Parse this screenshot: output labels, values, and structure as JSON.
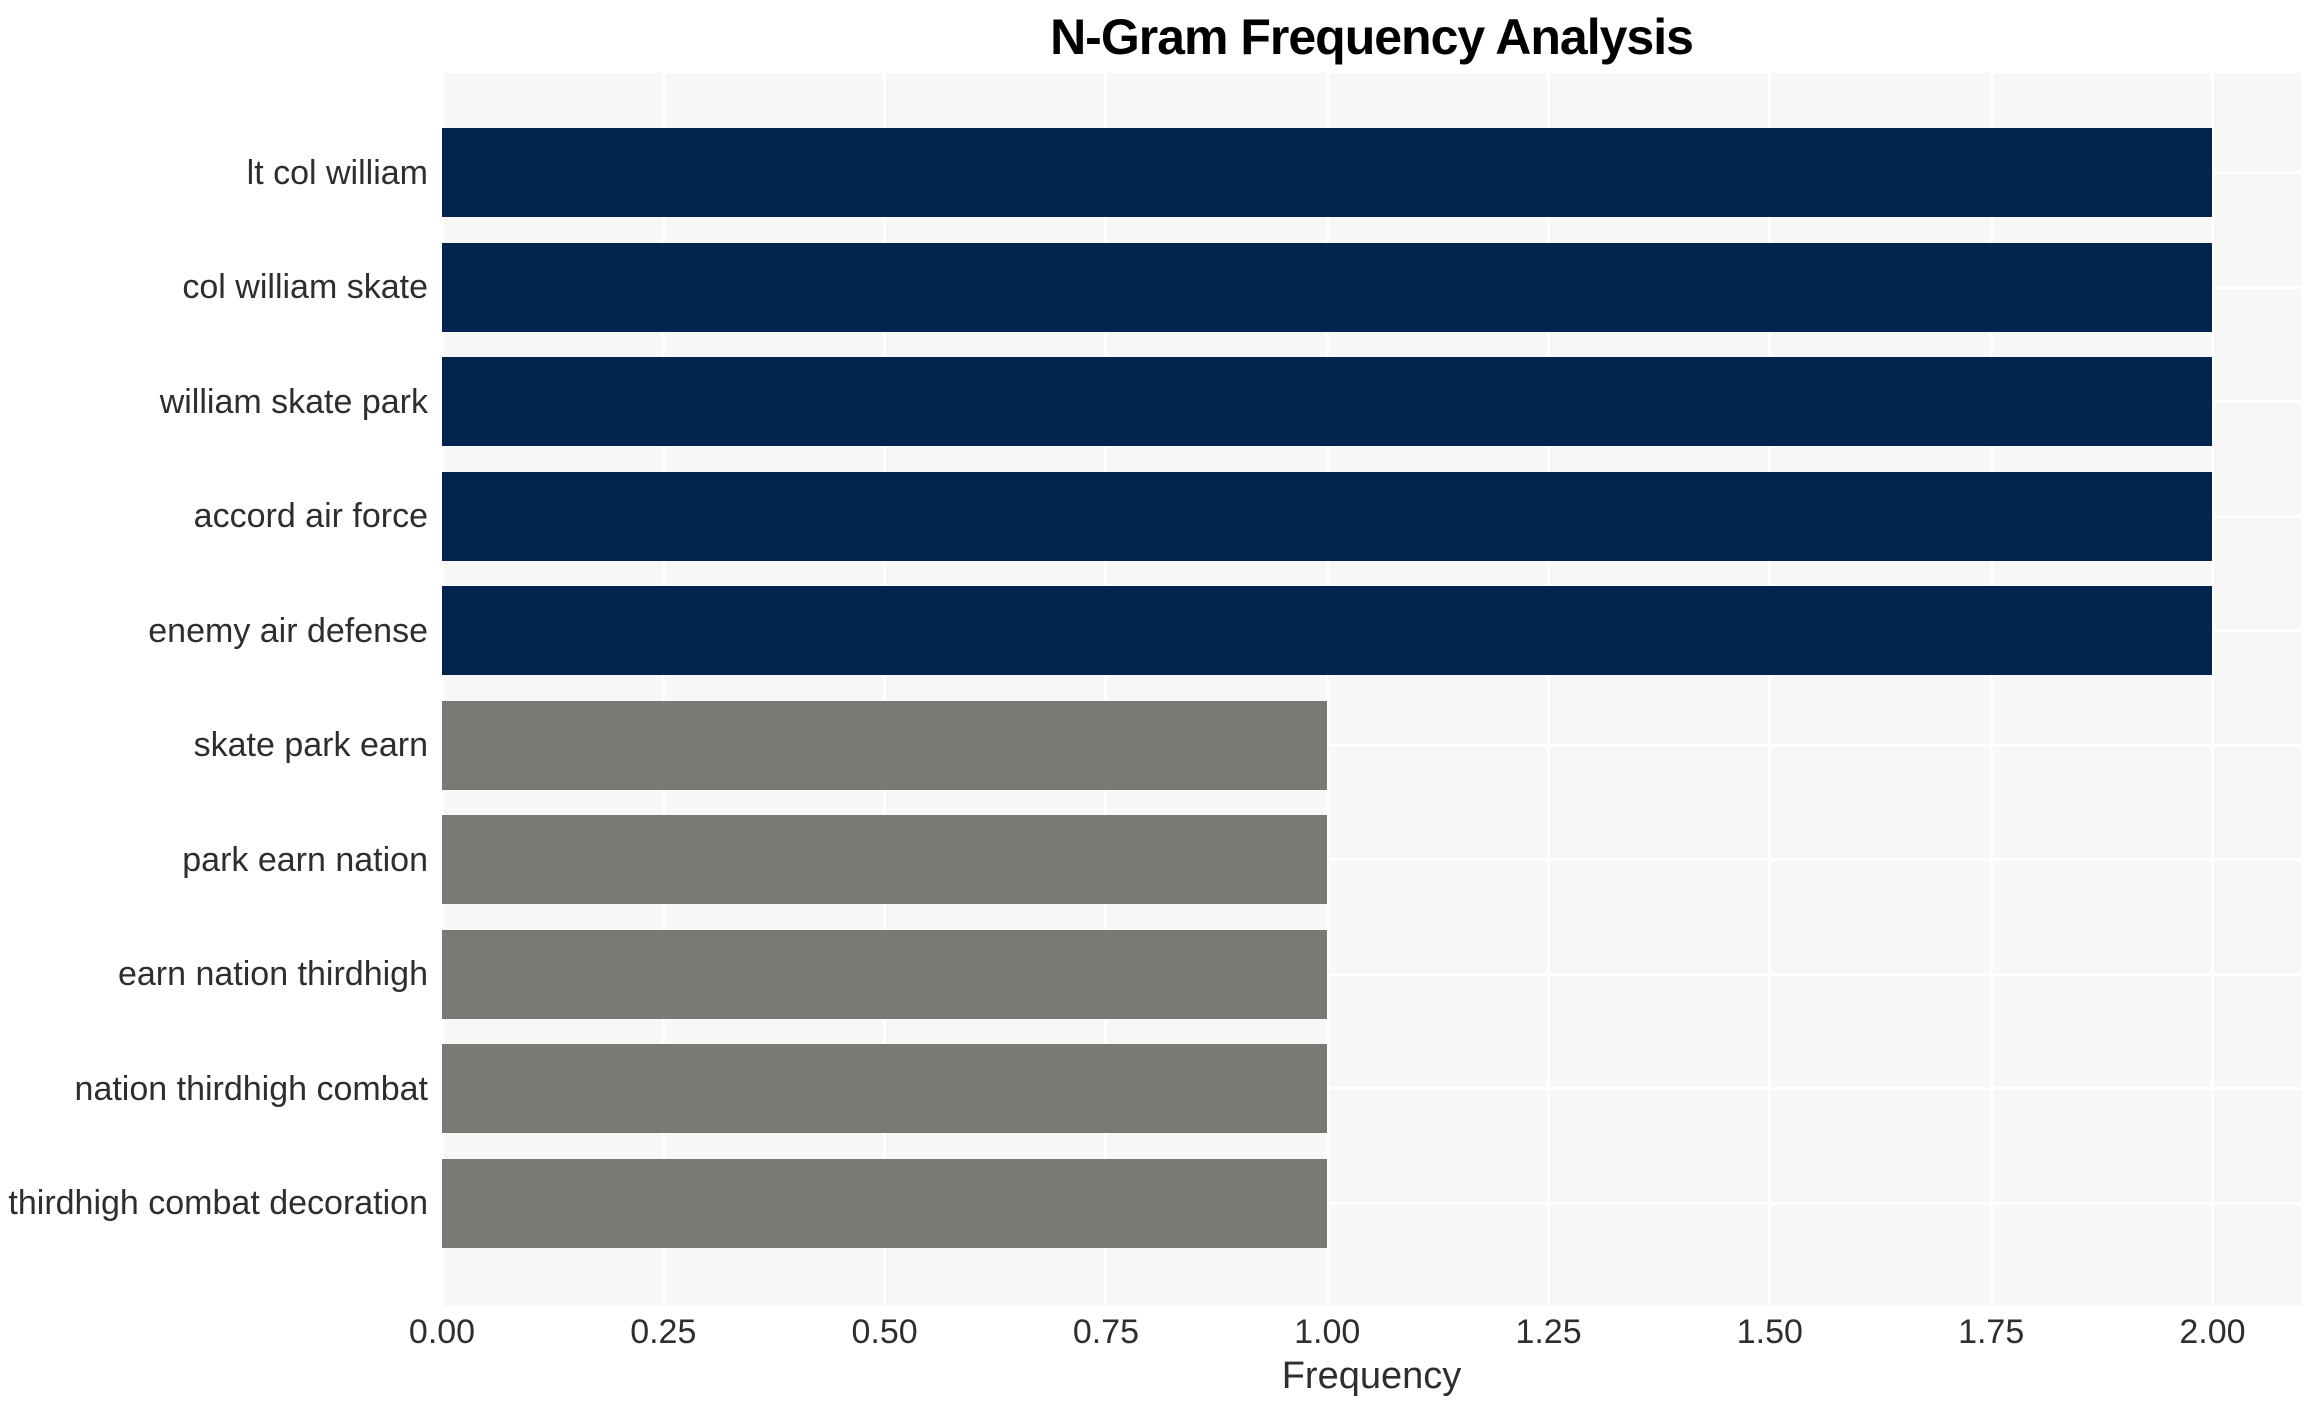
{
  "title": "N-Gram Frequency Analysis",
  "chart_data": {
    "type": "bar",
    "orientation": "horizontal",
    "title": "N-Gram Frequency Analysis",
    "xlabel": "Frequency",
    "ylabel": "",
    "categories": [
      "lt col william",
      "col william skate",
      "william skate park",
      "accord air force",
      "enemy air defense",
      "skate park earn",
      "park earn nation",
      "earn nation thirdhigh",
      "nation thirdhigh combat",
      "thirdhigh combat decoration"
    ],
    "values": [
      2,
      2,
      2,
      2,
      2,
      1,
      1,
      1,
      1,
      1
    ],
    "bar_colors": [
      "#03244f",
      "#03244f",
      "#03244f",
      "#03244f",
      "#03244f",
      "#7a7a75",
      "#7a7a75",
      "#7a7a75",
      "#7a7a75",
      "#7a7a75"
    ],
    "xlim": [
      0,
      2.1
    ],
    "xticks": [
      0,
      0.25,
      0.5,
      0.75,
      1.0,
      1.25,
      1.5,
      1.75,
      2.0
    ],
    "xtick_labels": [
      "0.00",
      "0.25",
      "0.50",
      "0.75",
      "1.00",
      "1.25",
      "1.50",
      "1.75",
      "2.00"
    ],
    "grid": true,
    "legend": false,
    "colors": {
      "freq_2_bar": "#03244f",
      "freq_1_bar": "#7a7a75",
      "plot_background": "#f7f7f7",
      "gridline": "#ffffff",
      "tick_text": "#2e2e2e",
      "title_text": "#000000"
    }
  }
}
